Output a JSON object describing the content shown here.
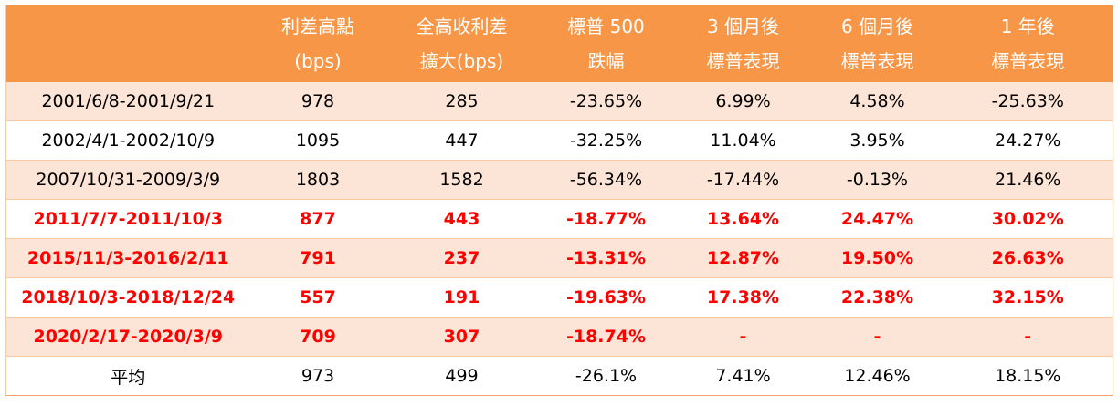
{
  "headers": [
    {
      "line1": "",
      "line2": ""
    },
    {
      "line1": "利差高點",
      "line2": "(bps)"
    },
    {
      "line1": "全高收利差",
      "line2": "擴大(bps)"
    },
    {
      "line1": "標普 500",
      "line2": "跌幅"
    },
    {
      "line1": "3 個月後",
      "line2": "標普表現"
    },
    {
      "line1": "6 個月後",
      "line2": "標普表現"
    },
    {
      "line1": "1 年後",
      "line2": "標普表現"
    }
  ],
  "rows": [
    [
      "2001/6/8-2001/9/21",
      "978",
      "285",
      "-23.65%",
      "6.99%",
      "4.58%",
      "-25.63%"
    ],
    [
      "2002/4/1-2002/10/9",
      "1095",
      "447",
      "-32.25%",
      "11.04%",
      "3.95%",
      "24.27%"
    ],
    [
      "2007/10/31-2009/3/9",
      "1803",
      "1582",
      "-56.34%",
      "-17.44%",
      "-0.13%",
      "21.46%"
    ],
    [
      "2011/7/7-2011/10/3",
      "877",
      "443",
      "-18.77%",
      "13.64%",
      "24.47%",
      "30.02%"
    ],
    [
      "2015/11/3-2016/2/11",
      "791",
      "237",
      "-13.31%",
      "12.87%",
      "19.50%",
      "26.63%"
    ],
    [
      "2018/10/3-2018/12/24",
      "557",
      "191",
      "-19.63%",
      "17.38%",
      "22.38%",
      "32.15%"
    ],
    [
      "2020/2/17-2020/3/9",
      "709",
      "307",
      "-18.74%",
      "-",
      "-",
      "-"
    ],
    [
      "平均",
      "973",
      "499",
      "-26.1%",
      "7.41%",
      "12.46%",
      "18.15%"
    ]
  ],
  "colors": {
    "header_bg": "#f79646",
    "row_shade": "#fce4d6",
    "highlight_text": "#ff0000"
  }
}
